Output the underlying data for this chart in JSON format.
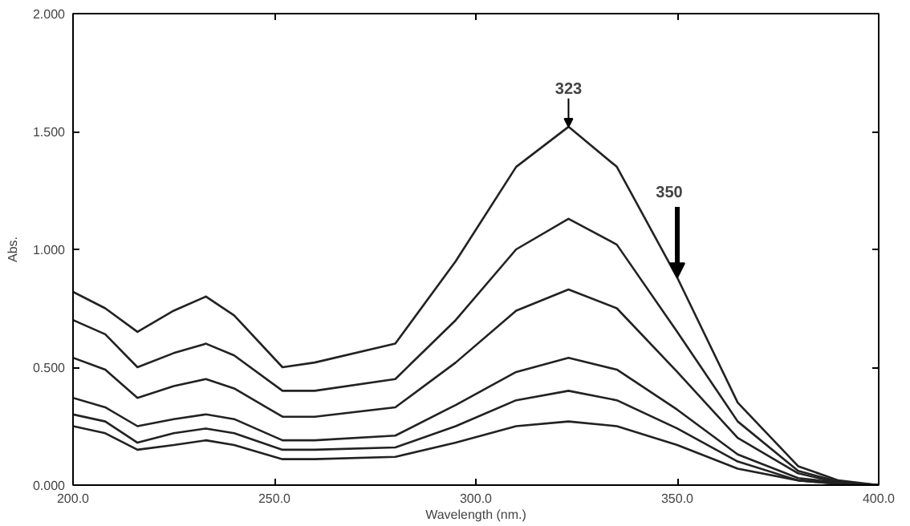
{
  "chart_data": {
    "type": "line",
    "xlabel": "Wavelength (nm.)",
    "ylabel": "Abs.",
    "x": [
      200,
      208,
      216,
      225,
      233,
      240,
      252,
      260,
      280,
      295,
      310,
      323,
      335,
      350,
      365,
      380,
      390,
      400
    ],
    "series": [
      {
        "color": "#222222",
        "values": [
          0.82,
          0.75,
          0.65,
          0.74,
          0.8,
          0.72,
          0.5,
          0.52,
          0.6,
          0.95,
          1.35,
          1.52,
          1.35,
          0.88,
          0.35,
          0.08,
          0.02,
          0.0
        ]
      },
      {
        "color": "#222222",
        "values": [
          0.7,
          0.64,
          0.5,
          0.56,
          0.6,
          0.55,
          0.4,
          0.4,
          0.45,
          0.7,
          1.0,
          1.13,
          1.02,
          0.65,
          0.27,
          0.06,
          0.015,
          0.0
        ]
      },
      {
        "color": "#222222",
        "values": [
          0.54,
          0.49,
          0.37,
          0.42,
          0.45,
          0.41,
          0.29,
          0.29,
          0.33,
          0.52,
          0.74,
          0.83,
          0.75,
          0.48,
          0.2,
          0.05,
          0.01,
          0.0
        ]
      },
      {
        "color": "#222222",
        "values": [
          0.37,
          0.33,
          0.25,
          0.28,
          0.3,
          0.28,
          0.19,
          0.19,
          0.21,
          0.34,
          0.48,
          0.54,
          0.49,
          0.32,
          0.13,
          0.03,
          0.01,
          0.0
        ]
      },
      {
        "color": "#222222",
        "values": [
          0.3,
          0.27,
          0.18,
          0.22,
          0.24,
          0.22,
          0.15,
          0.15,
          0.16,
          0.25,
          0.36,
          0.4,
          0.36,
          0.24,
          0.1,
          0.02,
          0.005,
          0.0
        ]
      },
      {
        "color": "#222222",
        "values": [
          0.25,
          0.22,
          0.15,
          0.17,
          0.19,
          0.17,
          0.11,
          0.11,
          0.12,
          0.18,
          0.25,
          0.27,
          0.25,
          0.17,
          0.07,
          0.02,
          0.005,
          0.0
        ]
      }
    ],
    "xlim": [
      200,
      400
    ],
    "ylim": [
      0,
      2
    ],
    "xticks": [
      {
        "value": 200,
        "label": "200.0"
      },
      {
        "value": 250,
        "label": "250.0"
      },
      {
        "value": 300,
        "label": "300.0"
      },
      {
        "value": 350,
        "label": "350.0"
      },
      {
        "value": 400,
        "label": "400.0"
      }
    ],
    "yticks": [
      {
        "value": 0,
        "label": "0.000"
      },
      {
        "value": 0.5,
        "label": "0.500"
      },
      {
        "value": 1,
        "label": "1.000"
      },
      {
        "value": 1.5,
        "label": "1.500"
      },
      {
        "value": 2,
        "label": "2.000"
      }
    ],
    "annotations": [
      {
        "text": "323",
        "x": 323,
        "y": 1.52
      },
      {
        "text": "350",
        "x": 350,
        "y": 0.88
      }
    ],
    "grid": false,
    "marker": "none",
    "line_style": "solid"
  }
}
